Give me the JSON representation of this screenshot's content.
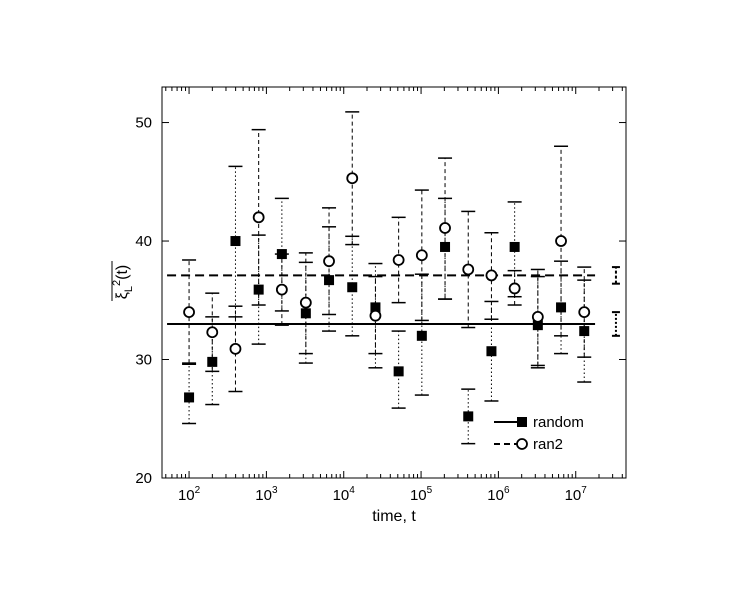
{
  "chart_data": {
    "type": "scatter",
    "title": "",
    "xlabel": "time, t",
    "ylabel": "ξ_L²(t)",
    "x_scale": "log10",
    "xlim_log10": [
      1.65,
      7.65
    ],
    "ylim": [
      20,
      53
    ],
    "x_ticks": [
      {
        "exp": 2,
        "base": "10",
        "sup": "2"
      },
      {
        "exp": 3,
        "base": "10",
        "sup": "3"
      },
      {
        "exp": 4,
        "base": "10",
        "sup": "4"
      },
      {
        "exp": 5,
        "base": "10",
        "sup": "5"
      },
      {
        "exp": 6,
        "base": "10",
        "sup": "6"
      },
      {
        "exp": 7,
        "base": "10",
        "sup": "7"
      }
    ],
    "y_ticks": [
      20,
      30,
      40,
      50
    ],
    "grid": false,
    "legend_position": "bottom-right",
    "series": [
      {
        "name": "random",
        "marker": "filled-square",
        "errorbar_style": "dotted",
        "mean_line": {
          "value": 33.0,
          "style": "solid",
          "band": [
            32.0,
            34.0
          ]
        },
        "points": [
          {
            "log10_t": 2.0,
            "y": 26.8,
            "lo": 24.6,
            "hi": 29.6
          },
          {
            "log10_t": 2.3,
            "y": 29.8,
            "lo": 26.2,
            "hi": 33.6
          },
          {
            "log10_t": 2.6,
            "y": 40.0,
            "lo": 33.6,
            "hi": 46.3
          },
          {
            "log10_t": 2.9,
            "y": 35.9,
            "lo": 31.3,
            "hi": 40.5
          },
          {
            "log10_t": 3.2,
            "y": 38.9,
            "lo": 34.1,
            "hi": 43.6
          },
          {
            "log10_t": 3.51,
            "y": 33.9,
            "lo": 29.7,
            "hi": 38.2
          },
          {
            "log10_t": 3.81,
            "y": 36.7,
            "lo": 32.4,
            "hi": 41.2
          },
          {
            "log10_t": 4.11,
            "y": 36.1,
            "lo": 32.0,
            "hi": 40.4
          },
          {
            "log10_t": 4.41,
            "y": 34.4,
            "lo": 29.3,
            "hi": 38.1
          },
          {
            "log10_t": 4.71,
            "y": 29.0,
            "lo": 25.9,
            "hi": 32.4
          },
          {
            "log10_t": 5.01,
            "y": 32.0,
            "lo": 27.0,
            "hi": 37.2
          },
          {
            "log10_t": 5.31,
            "y": 39.5,
            "lo": 35.1,
            "hi": 43.6
          },
          {
            "log10_t": 5.61,
            "y": 25.2,
            "lo": 22.9,
            "hi": 27.5
          },
          {
            "log10_t": 5.91,
            "y": 30.7,
            "lo": 26.5,
            "hi": 34.9
          },
          {
            "log10_t": 6.21,
            "y": 39.5,
            "lo": 35.3,
            "hi": 43.3
          },
          {
            "log10_t": 6.51,
            "y": 32.9,
            "lo": 29.3,
            "hi": 37.0
          },
          {
            "log10_t": 6.81,
            "y": 34.4,
            "lo": 30.5,
            "hi": 38.3
          },
          {
            "log10_t": 7.11,
            "y": 32.4,
            "lo": 28.1,
            "hi": 36.7
          }
        ]
      },
      {
        "name": "ran2",
        "marker": "open-circle",
        "errorbar_style": "dashed",
        "mean_line": {
          "value": 37.1,
          "style": "dashed",
          "band": [
            36.4,
            37.8
          ]
        },
        "points": [
          {
            "log10_t": 2.0,
            "y": 34.0,
            "lo": 29.7,
            "hi": 38.4
          },
          {
            "log10_t": 2.3,
            "y": 32.3,
            "lo": 29.0,
            "hi": 35.6
          },
          {
            "log10_t": 2.6,
            "y": 30.9,
            "lo": 27.3,
            "hi": 34.5
          },
          {
            "log10_t": 2.9,
            "y": 42.0,
            "lo": 34.6,
            "hi": 49.4
          },
          {
            "log10_t": 3.2,
            "y": 35.9,
            "lo": 32.9,
            "hi": 38.9
          },
          {
            "log10_t": 3.51,
            "y": 34.8,
            "lo": 30.5,
            "hi": 39.0
          },
          {
            "log10_t": 3.81,
            "y": 38.3,
            "lo": 33.8,
            "hi": 42.8
          },
          {
            "log10_t": 4.11,
            "y": 45.3,
            "lo": 39.7,
            "hi": 50.9
          },
          {
            "log10_t": 4.41,
            "y": 33.7,
            "lo": 30.5,
            "hi": 37.0
          },
          {
            "log10_t": 4.71,
            "y": 38.4,
            "lo": 34.8,
            "hi": 42.0
          },
          {
            "log10_t": 5.01,
            "y": 38.8,
            "lo": 33.3,
            "hi": 44.3
          },
          {
            "log10_t": 5.31,
            "y": 41.1,
            "lo": 35.1,
            "hi": 47.0
          },
          {
            "log10_t": 5.61,
            "y": 37.6,
            "lo": 32.7,
            "hi": 42.5
          },
          {
            "log10_t": 5.91,
            "y": 37.1,
            "lo": 33.4,
            "hi": 40.7
          },
          {
            "log10_t": 6.21,
            "y": 36.0,
            "lo": 34.6,
            "hi": 37.5
          },
          {
            "log10_t": 6.51,
            "y": 33.6,
            "lo": 29.5,
            "hi": 37.6
          },
          {
            "log10_t": 6.81,
            "y": 40.0,
            "lo": 32.0,
            "hi": 48.0
          },
          {
            "log10_t": 7.11,
            "y": 34.0,
            "lo": 30.2,
            "hi": 37.8
          }
        ]
      }
    ]
  }
}
